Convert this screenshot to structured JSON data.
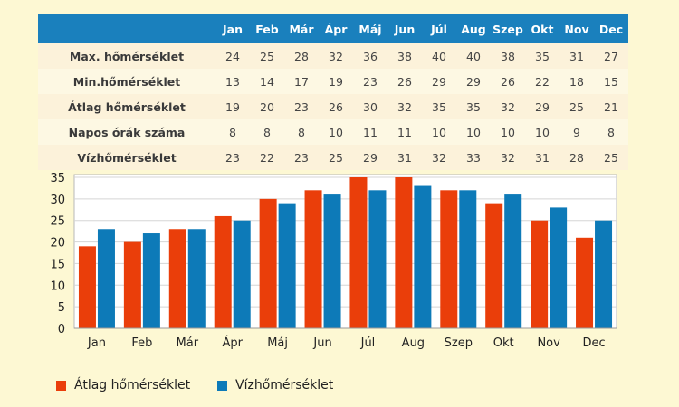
{
  "table": {
    "months": [
      "Jan",
      "Feb",
      "Már",
      "Ápr",
      "Máj",
      "Jun",
      "Júl",
      "Aug",
      "Szep",
      "Okt",
      "Nov",
      "Dec"
    ],
    "rows": [
      {
        "label": "Max. hőmérséklet",
        "values": [
          24,
          25,
          28,
          32,
          36,
          38,
          40,
          40,
          38,
          35,
          31,
          27
        ]
      },
      {
        "label": "Min.hőmérséklet",
        "values": [
          13,
          14,
          17,
          19,
          23,
          26,
          29,
          29,
          26,
          22,
          18,
          15
        ]
      },
      {
        "label": "Átlag hőmérséklet",
        "values": [
          19,
          20,
          23,
          26,
          30,
          32,
          35,
          35,
          32,
          29,
          25,
          21
        ]
      },
      {
        "label": "Napos órák száma",
        "values": [
          8,
          8,
          8,
          10,
          11,
          11,
          10,
          10,
          10,
          10,
          9,
          8
        ]
      },
      {
        "label": "Vízhőmérséklet",
        "values": [
          23,
          22,
          23,
          25,
          29,
          31,
          32,
          33,
          32,
          31,
          28,
          25
        ]
      }
    ]
  },
  "colors": {
    "header_bg": "#1a80bd",
    "series_avg": "#ea3e0a",
    "series_water": "#0d7ab8"
  },
  "chart_data": {
    "type": "bar",
    "categories": [
      "Jan",
      "Feb",
      "Már",
      "Ápr",
      "Máj",
      "Jun",
      "Júl",
      "Aug",
      "Szep",
      "Okt",
      "Nov",
      "Dec"
    ],
    "series": [
      {
        "name": "Átlag hőmérséklet",
        "values": [
          19,
          20,
          23,
          26,
          30,
          32,
          35,
          35,
          32,
          29,
          25,
          21
        ],
        "color": "#ea3e0a"
      },
      {
        "name": "Vízhőmérséklet",
        "values": [
          23,
          22,
          23,
          25,
          29,
          31,
          32,
          33,
          32,
          31,
          28,
          25
        ],
        "color": "#0d7ab8"
      }
    ],
    "ylim": [
      0,
      35
    ],
    "yticks": [
      0,
      5,
      10,
      15,
      20,
      25,
      30,
      35
    ],
    "grid": true,
    "legend_position": "bottom-left"
  }
}
